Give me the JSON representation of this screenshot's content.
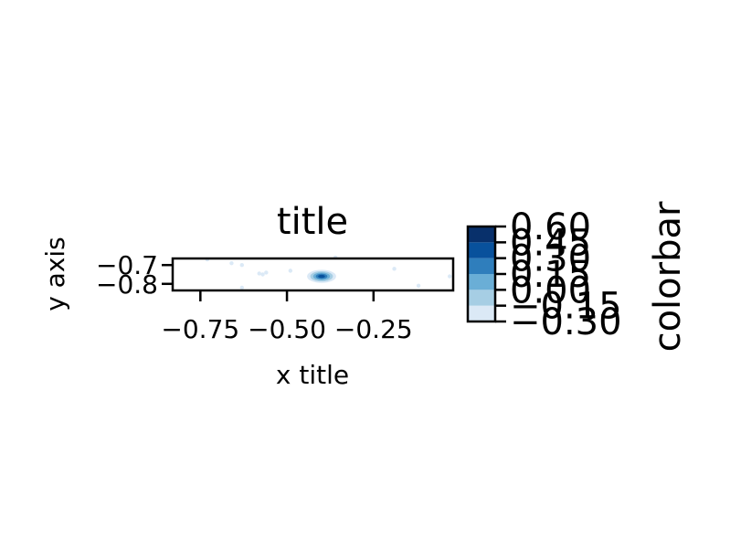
{
  "chart_data": {
    "type": "scatter",
    "title": "title",
    "xlabel": "x title",
    "ylabel": "y axis",
    "xlim": [
      -0.83,
      -0.02
    ],
    "ylim": [
      -0.835,
      -0.665
    ],
    "x_ticks": [
      -0.75,
      -0.5,
      -0.25
    ],
    "x_tick_labels": [
      "−0.75",
      "−0.50",
      "−0.25"
    ],
    "y_ticks": [
      -0.7,
      -0.8
    ],
    "y_tick_labels": [
      "−0.7",
      "−0.8"
    ],
    "grid": false,
    "colorbar": {
      "label": "colorbar",
      "levels": [
        -0.3,
        -0.15,
        0.0,
        0.15,
        0.3,
        0.45,
        0.6
      ],
      "tick_labels": [
        "−0.30",
        "−0.15",
        "0.00",
        "0.15",
        "0.30",
        "0.45",
        "0.60"
      ],
      "colors": [
        "#ffffff",
        "#dbe9f6",
        "#a6cee4",
        "#6aaed6",
        "#2f7ebc",
        "#08519c",
        "#08306b"
      ]
    },
    "points": [
      {
        "x": -0.66,
        "y": -0.69,
        "level": 1
      },
      {
        "x": -0.63,
        "y": -0.7,
        "level": 1
      },
      {
        "x": -0.58,
        "y": -0.745,
        "level": 1
      },
      {
        "x": -0.57,
        "y": -0.75,
        "level": 1
      },
      {
        "x": -0.56,
        "y": -0.74,
        "level": 1
      },
      {
        "x": -0.63,
        "y": -0.82,
        "level": 1
      },
      {
        "x": -0.49,
        "y": -0.73,
        "level": 1
      },
      {
        "x": -0.36,
        "y": -0.66,
        "level": 1
      },
      {
        "x": -0.19,
        "y": -0.72,
        "level": 1
      },
      {
        "x": -0.12,
        "y": -0.81,
        "level": 1
      },
      {
        "x": -0.03,
        "y": -0.76,
        "level": 1
      },
      {
        "x": -0.73,
        "y": -0.67,
        "level": 1
      }
    ],
    "peak": {
      "x": -0.4,
      "y": -0.76,
      "rx": 0.042,
      "ry": 0.035
    }
  }
}
